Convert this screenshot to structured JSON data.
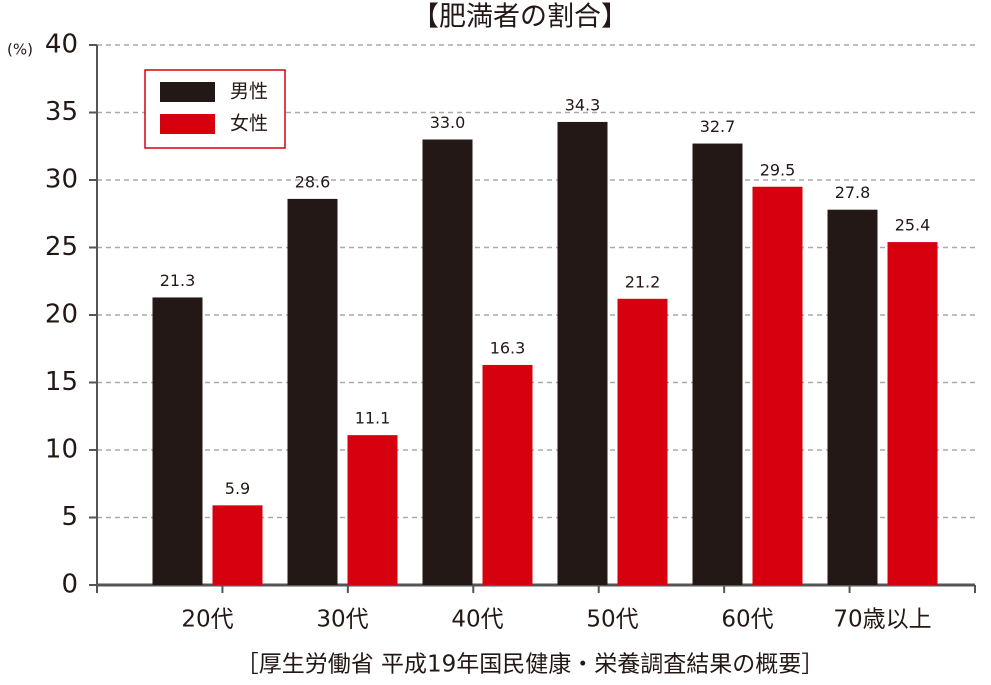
{
  "chart_data": {
    "type": "bar",
    "title": "【肥満者の割合】",
    "y_label": "(%)",
    "source": "［厚生労働省 平成19年国民健康・栄養調査結果の概要］",
    "categories": [
      "20代",
      "30代",
      "40代",
      "50代",
      "60代",
      "70歳以上"
    ],
    "series": [
      {
        "name": "男性",
        "color": "#231815",
        "values": [
          21.3,
          28.6,
          33.0,
          34.3,
          32.7,
          27.8
        ],
        "value_labels": [
          "21.3",
          "28.6",
          "33.0",
          "34.3",
          "32.7",
          "27.8"
        ]
      },
      {
        "name": "女性",
        "color": "#d7000f",
        "values": [
          5.9,
          11.1,
          16.3,
          21.2,
          29.5,
          25.4
        ],
        "value_labels": [
          "5.9",
          "11.1",
          "16.3",
          "21.2",
          "29.5",
          "25.4"
        ]
      }
    ],
    "ylim": [
      0,
      40
    ],
    "yticks": [
      0,
      5,
      10,
      15,
      20,
      25,
      30,
      35,
      40
    ],
    "grid": true,
    "legend": "top-left"
  }
}
